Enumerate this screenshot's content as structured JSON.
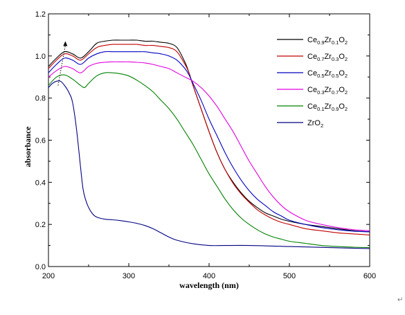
{
  "chart_data": {
    "type": "line",
    "title": "",
    "xlabel": "wavelength (nm)",
    "ylabel": "absorbance",
    "xlim": [
      200,
      600
    ],
    "ylim": [
      0.0,
      1.2
    ],
    "xticks": [
      "200",
      "300",
      "400",
      "500",
      "600"
    ],
    "yticks": [
      "0.0",
      "0.2",
      "0.4",
      "0.6",
      "0.8",
      "1.0",
      "1.2"
    ],
    "grid": false,
    "legend_position": "top-right",
    "series": [
      {
        "name": "Ce0.9Zr0.1O2",
        "parts": [
          [
            "Ce",
            ""
          ],
          [
            "0.9",
            "sub"
          ],
          [
            "Zr",
            ""
          ],
          [
            "0.1",
            "sub"
          ],
          [
            "O",
            ""
          ],
          [
            "2",
            "sub"
          ]
        ],
        "color": "#000000",
        "x": [
          200,
          210,
          220,
          230,
          240,
          250,
          260,
          270,
          280,
          290,
          300,
          310,
          320,
          330,
          340,
          350,
          360,
          370,
          375,
          380,
          390,
          400,
          410,
          420,
          430,
          440,
          450,
          460,
          470,
          480,
          490,
          500,
          520,
          540,
          560,
          580,
          600
        ],
        "y": [
          0.95,
          0.99,
          1.02,
          1.01,
          0.99,
          1.02,
          1.06,
          1.07,
          1.075,
          1.075,
          1.075,
          1.075,
          1.07,
          1.07,
          1.065,
          1.06,
          1.04,
          0.97,
          0.92,
          0.86,
          0.75,
          0.64,
          0.54,
          0.46,
          0.4,
          0.35,
          0.31,
          0.28,
          0.255,
          0.24,
          0.225,
          0.215,
          0.2,
          0.19,
          0.18,
          0.17,
          0.165
        ]
      },
      {
        "name": "Ce0.7Zr0.3O2",
        "parts": [
          [
            "Ce",
            ""
          ],
          [
            "0.7",
            "sub"
          ],
          [
            "Zr",
            ""
          ],
          [
            "0.3",
            "sub"
          ],
          [
            "O",
            ""
          ],
          [
            "2",
            "sub"
          ]
        ],
        "color": "#c00000",
        "x": [
          200,
          210,
          220,
          230,
          240,
          250,
          260,
          270,
          280,
          290,
          300,
          310,
          320,
          330,
          340,
          350,
          360,
          370,
          375,
          380,
          390,
          400,
          410,
          420,
          430,
          440,
          450,
          460,
          470,
          480,
          490,
          500,
          520,
          540,
          560,
          580,
          600
        ],
        "y": [
          0.94,
          0.98,
          1.01,
          1.0,
          0.98,
          1.01,
          1.04,
          1.05,
          1.055,
          1.055,
          1.055,
          1.055,
          1.05,
          1.05,
          1.045,
          1.04,
          1.02,
          0.96,
          0.92,
          0.86,
          0.75,
          0.64,
          0.54,
          0.46,
          0.395,
          0.345,
          0.305,
          0.27,
          0.245,
          0.225,
          0.21,
          0.2,
          0.18,
          0.17,
          0.16,
          0.155,
          0.15
        ]
      },
      {
        "name": "Ce0.5Zr0.5O2",
        "parts": [
          [
            "Ce",
            ""
          ],
          [
            "0.5",
            "sub"
          ],
          [
            "Zr",
            ""
          ],
          [
            "0.5",
            "sub"
          ],
          [
            "O",
            ""
          ],
          [
            "2",
            "sub"
          ]
        ],
        "color": "#0000c0",
        "x": [
          200,
          210,
          220,
          230,
          240,
          250,
          260,
          270,
          280,
          290,
          300,
          310,
          320,
          330,
          340,
          350,
          360,
          370,
          375,
          380,
          390,
          400,
          410,
          420,
          430,
          440,
          450,
          460,
          470,
          480,
          490,
          500,
          520,
          540,
          560,
          580,
          600
        ],
        "y": [
          0.92,
          0.96,
          0.99,
          0.98,
          0.96,
          0.99,
          1.01,
          1.02,
          1.02,
          1.02,
          1.02,
          1.02,
          1.02,
          1.015,
          1.01,
          1.0,
          0.98,
          0.94,
          0.91,
          0.87,
          0.79,
          0.7,
          0.62,
          0.54,
          0.47,
          0.41,
          0.36,
          0.32,
          0.29,
          0.26,
          0.24,
          0.22,
          0.2,
          0.185,
          0.175,
          0.168,
          0.165
        ]
      },
      {
        "name": "Ce0.3Zr0.7O2",
        "parts": [
          [
            "Ce",
            ""
          ],
          [
            "0.3",
            "sub"
          ],
          [
            "Zr",
            ""
          ],
          [
            "0.7",
            "sub"
          ],
          [
            "O",
            ""
          ],
          [
            "2",
            "sub"
          ]
        ],
        "color": "#e000e0",
        "x": [
          200,
          210,
          220,
          230,
          240,
          250,
          260,
          270,
          280,
          290,
          300,
          310,
          320,
          330,
          340,
          350,
          360,
          370,
          380,
          390,
          400,
          410,
          420,
          430,
          440,
          450,
          460,
          470,
          480,
          490,
          500,
          520,
          540,
          560,
          580,
          600
        ],
        "y": [
          0.9,
          0.93,
          0.95,
          0.94,
          0.92,
          0.95,
          0.965,
          0.97,
          0.972,
          0.972,
          0.972,
          0.97,
          0.967,
          0.96,
          0.95,
          0.94,
          0.92,
          0.9,
          0.88,
          0.85,
          0.81,
          0.76,
          0.7,
          0.64,
          0.57,
          0.5,
          0.44,
          0.38,
          0.33,
          0.29,
          0.26,
          0.22,
          0.2,
          0.185,
          0.175,
          0.17
        ]
      },
      {
        "name": "Ce0.1Zr0.9O2",
        "parts": [
          [
            "Ce",
            ""
          ],
          [
            "0.1",
            "sub"
          ],
          [
            "Zr",
            ""
          ],
          [
            "0.9",
            "sub"
          ],
          [
            "O",
            ""
          ],
          [
            "2",
            "sub"
          ]
        ],
        "color": "#008000",
        "x": [
          200,
          210,
          220,
          230,
          240,
          245,
          250,
          260,
          270,
          280,
          290,
          300,
          310,
          320,
          330,
          340,
          350,
          360,
          370,
          380,
          390,
          400,
          410,
          420,
          430,
          440,
          450,
          460,
          470,
          480,
          490,
          500,
          520,
          540,
          560,
          580,
          600
        ],
        "y": [
          0.86,
          0.9,
          0.91,
          0.89,
          0.86,
          0.85,
          0.87,
          0.905,
          0.92,
          0.92,
          0.915,
          0.905,
          0.885,
          0.86,
          0.83,
          0.79,
          0.75,
          0.7,
          0.64,
          0.58,
          0.51,
          0.44,
          0.38,
          0.32,
          0.27,
          0.23,
          0.2,
          0.175,
          0.155,
          0.14,
          0.13,
          0.12,
          0.11,
          0.1,
          0.095,
          0.092,
          0.09
        ]
      },
      {
        "name": "ZrO2",
        "parts": [
          [
            "ZrO",
            ""
          ],
          [
            "2",
            "sub"
          ]
        ],
        "color": "#000080",
        "x": [
          200,
          205,
          210,
          215,
          220,
          225,
          230,
          235,
          240,
          243,
          246,
          250,
          255,
          260,
          270,
          280,
          290,
          300,
          310,
          320,
          330,
          340,
          350,
          360,
          380,
          400,
          420,
          450,
          500,
          550,
          600
        ],
        "y": [
          0.85,
          0.87,
          0.88,
          0.88,
          0.86,
          0.83,
          0.78,
          0.65,
          0.47,
          0.37,
          0.32,
          0.28,
          0.25,
          0.235,
          0.225,
          0.222,
          0.218,
          0.212,
          0.205,
          0.195,
          0.18,
          0.16,
          0.14,
          0.125,
          0.108,
          0.1,
          0.1,
          0.1,
          0.095,
          0.09,
          0.085
        ]
      }
    ],
    "annotation": {
      "type": "arrow",
      "from": [
        212,
        0.86
      ],
      "to": [
        221,
        1.07
      ]
    }
  }
}
